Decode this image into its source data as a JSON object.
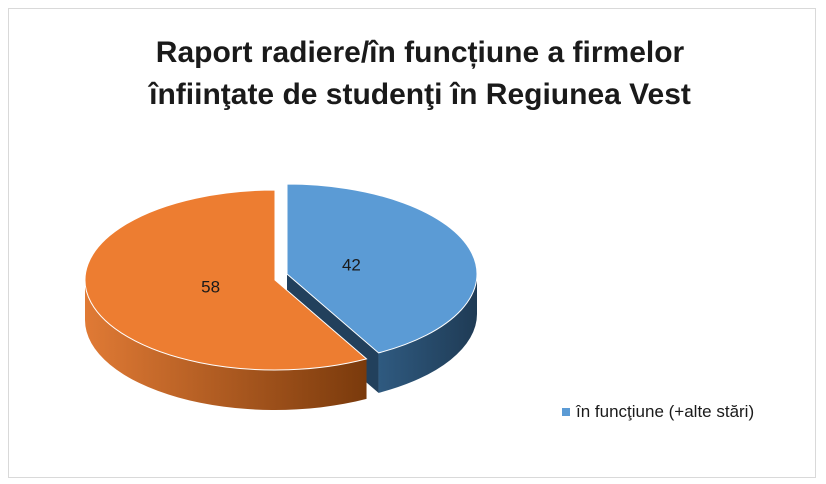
{
  "chart_data": {
    "type": "pie3d",
    "title": "Raport radiere/în funcțiune a firmelor înfiinţate de studenţi în Regiunea Vest",
    "categories": [
      "în funcţiune (+alte stări)",
      null
    ],
    "values": [
      42,
      58
    ],
    "colors": [
      "#5b9bd5",
      "#ed7d31"
    ],
    "legend": "right"
  }
}
